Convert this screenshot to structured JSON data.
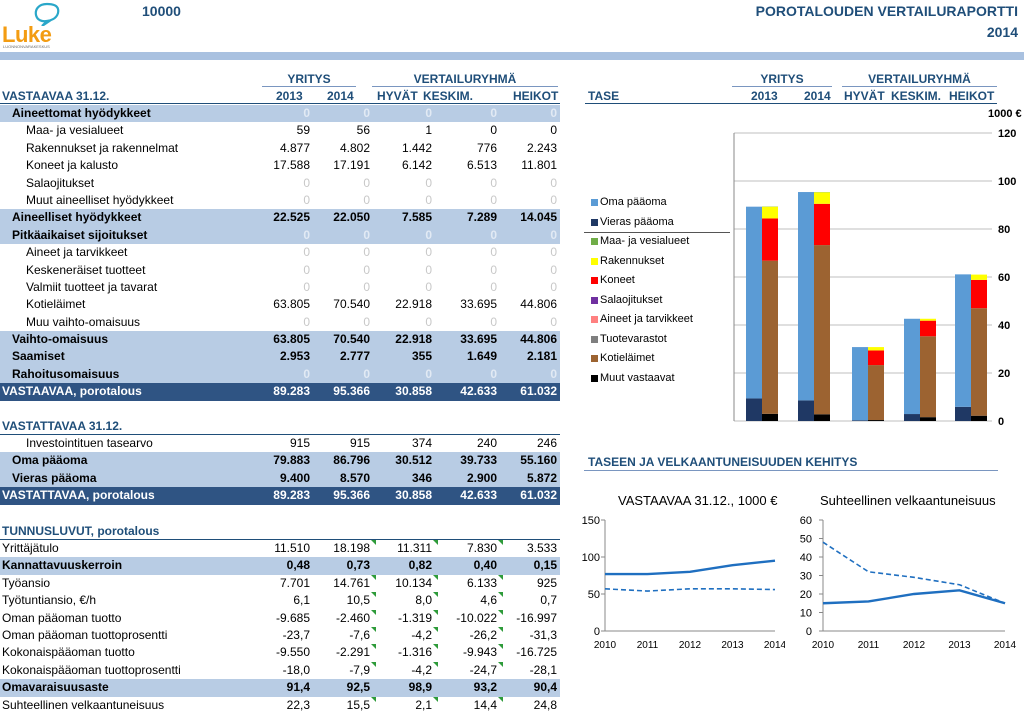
{
  "header": {
    "farm_id": "10000",
    "title": "POROTALOUDEN VERTAILURAPORTTI",
    "year": "2014",
    "logo_text": "Luke",
    "logo_sub": "LUONNONVARAKESKUS"
  },
  "groups": {
    "company": "YRITYS",
    "comparison": "VERTAILURYHMÄ"
  },
  "columns": [
    "2013",
    "2014",
    "HYVÄT",
    "KESKIM.",
    "HEIKOT"
  ],
  "assets": {
    "title": "VASTAAVAA 31.12.",
    "rows": [
      {
        "label": "Aineettomat hyödykkeet",
        "values": [
          "0",
          "0",
          "0",
          "0",
          "0"
        ],
        "style": "sum zero",
        "indent": 1
      },
      {
        "label": "Maa- ja vesialueet",
        "values": [
          "59",
          "56",
          "1",
          "0",
          "0"
        ],
        "style": "",
        "indent": 2
      },
      {
        "label": "Rakennukset ja rakennelmat",
        "values": [
          "4.877",
          "4.802",
          "1.442",
          "776",
          "2.243"
        ],
        "style": "",
        "indent": 2
      },
      {
        "label": "Koneet ja kalusto",
        "values": [
          "17.588",
          "17.191",
          "6.142",
          "6.513",
          "11.801"
        ],
        "style": "",
        "indent": 2
      },
      {
        "label": "Salaojitukset",
        "values": [
          "0",
          "0",
          "0",
          "0",
          "0"
        ],
        "style": "zero",
        "indent": 2
      },
      {
        "label": "Muut aineelliset hyödykkeet",
        "values": [
          "0",
          "0",
          "0",
          "0",
          "0"
        ],
        "style": "zero",
        "indent": 2
      },
      {
        "label": "Aineelliset hyödykkeet",
        "values": [
          "22.525",
          "22.050",
          "7.585",
          "7.289",
          "14.045"
        ],
        "style": "sum",
        "indent": 1
      },
      {
        "label": "Pitkäaikaiset sijoitukset",
        "values": [
          "0",
          "0",
          "0",
          "0",
          "0"
        ],
        "style": "sum zero",
        "indent": 1
      },
      {
        "label": "Aineet ja tarvikkeet",
        "values": [
          "0",
          "0",
          "0",
          "0",
          "0"
        ],
        "style": "zero",
        "indent": 2
      },
      {
        "label": "Keskeneräiset tuotteet",
        "values": [
          "0",
          "0",
          "0",
          "0",
          "0"
        ],
        "style": "zero",
        "indent": 2
      },
      {
        "label": "Valmiit tuotteet ja tavarat",
        "values": [
          "0",
          "0",
          "0",
          "0",
          "0"
        ],
        "style": "zero",
        "indent": 2
      },
      {
        "label": "Kotieläimet",
        "values": [
          "63.805",
          "70.540",
          "22.918",
          "33.695",
          "44.806"
        ],
        "style": "",
        "indent": 2
      },
      {
        "label": "Muu vaihto-omaisuus",
        "values": [
          "0",
          "0",
          "0",
          "0",
          "0"
        ],
        "style": "zero",
        "indent": 2
      },
      {
        "label": "Vaihto-omaisuus",
        "values": [
          "63.805",
          "70.540",
          "22.918",
          "33.695",
          "44.806"
        ],
        "style": "sum",
        "indent": 1
      },
      {
        "label": "Saamiset",
        "values": [
          "2.953",
          "2.777",
          "355",
          "1.649",
          "2.181"
        ],
        "style": "sum",
        "indent": 1
      },
      {
        "label": "Rahoitusomaisuus",
        "values": [
          "0",
          "0",
          "0",
          "0",
          "0"
        ],
        "style": "sum zero",
        "indent": 1
      },
      {
        "label": "VASTAAVAA, porotalous",
        "values": [
          "89.283",
          "95.366",
          "30.858",
          "42.633",
          "61.032"
        ],
        "style": "tot",
        "indent": 0
      }
    ]
  },
  "liabilities": {
    "title": "VASTATTAVAA 31.12.",
    "rows": [
      {
        "label": "Investointituen tasearvo",
        "values": [
          "915",
          "915",
          "374",
          "240",
          "246"
        ],
        "style": "",
        "indent": 2
      },
      {
        "label": "Oma pääoma",
        "values": [
          "79.883",
          "86.796",
          "30.512",
          "39.733",
          "55.160"
        ],
        "style": "sum",
        "indent": 1
      },
      {
        "label": "Vieras pääoma",
        "values": [
          "9.400",
          "8.570",
          "346",
          "2.900",
          "5.872"
        ],
        "style": "sum",
        "indent": 1
      },
      {
        "label": "VASTATTAVAA, porotalous",
        "values": [
          "89.283",
          "95.366",
          "30.858",
          "42.633",
          "61.032"
        ],
        "style": "tot",
        "indent": 0
      }
    ]
  },
  "ratios": {
    "title": "TUNNUSLUVUT, porotalous",
    "rows": [
      {
        "label": "Yrittäjätulo",
        "values": [
          "11.510",
          "18.198",
          "11.311",
          "7.830",
          "3.533"
        ],
        "style": "",
        "indent": 0
      },
      {
        "label": "Kannattavuuskerroin",
        "values": [
          "0,48",
          "0,73",
          "0,82",
          "0,40",
          "0,15"
        ],
        "style": "sum",
        "indent": 0
      },
      {
        "label": "Työansio",
        "values": [
          "7.701",
          "14.761",
          "10.134",
          "6.133",
          "925"
        ],
        "style": "",
        "indent": 0
      },
      {
        "label": "Työtuntiansio, €/h",
        "values": [
          "6,1",
          "10,5",
          "8,0",
          "4,6",
          "0,7"
        ],
        "style": "",
        "indent": 0
      },
      {
        "label": "Oman pääoman tuotto",
        "values": [
          "-9.685",
          "-2.460",
          "-1.319",
          "-10.022",
          "-16.997"
        ],
        "style": "",
        "indent": 0
      },
      {
        "label": "Oman pääoman tuottoprosentti",
        "values": [
          "-23,7",
          "-7,6",
          "-4,2",
          "-26,2",
          "-31,3"
        ],
        "style": "",
        "indent": 0
      },
      {
        "label": "Kokonaispääoman tuotto",
        "values": [
          "-9.550",
          "-2.291",
          "-1.316",
          "-9.943",
          "-16.725"
        ],
        "style": "",
        "indent": 0
      },
      {
        "label": "Kokonaispääoman tuottoprosentti",
        "values": [
          "-18,0",
          "-7,9",
          "-4,2",
          "-24,7",
          "-28,1"
        ],
        "style": "",
        "indent": 0
      },
      {
        "label": "Omavaraisuusaste",
        "values": [
          "91,4",
          "92,5",
          "98,9",
          "93,2",
          "90,4"
        ],
        "style": "sum",
        "indent": 0
      },
      {
        "label": "Suhteellinen velkaantuneisuus",
        "values": [
          "22,3",
          "15,5",
          "2,1",
          "14,4",
          "24,8"
        ],
        "style": "",
        "indent": 0
      }
    ]
  },
  "tase": {
    "label": "TASE",
    "unit": "1000 €",
    "legend": [
      {
        "name": "Oma pääoma",
        "color": "#5b9bd5"
      },
      {
        "name": "Vieras pääoma",
        "color": "#1f3864"
      },
      {
        "name": "Maa- ja vesialueet",
        "color": "#70ad47"
      },
      {
        "name": "Rakennukset",
        "color": "#ffff00"
      },
      {
        "name": "Koneet",
        "color": "#ff0000"
      },
      {
        "name": "Salaojitukset",
        "color": "#7030a0"
      },
      {
        "name": "Aineet ja tarvikkeet",
        "color": "#ff8080"
      },
      {
        "name": "Tuotevarastot",
        "color": "#7f7f7f"
      },
      {
        "name": "Kotieläimet",
        "color": "#9c6331"
      },
      {
        "name": "Muut vastaavat",
        "color": "#000000"
      }
    ]
  },
  "development_title": "TASEEN JA VELKAANTUNEISUUDEN KEHITYS",
  "chart_data": [
    {
      "type": "bar",
      "title": "",
      "ylabel": "1000 €",
      "categories": [
        "2013",
        "2014",
        "HYVÄT",
        "KESKIM.",
        "HEIKOT"
      ],
      "ylim": [
        0,
        120
      ],
      "yticks": [
        0,
        20,
        40,
        60,
        80,
        100,
        120
      ],
      "series": [
        {
          "name": "Vieras pääoma",
          "stack": "liabilities",
          "values": [
            9.4,
            8.6,
            0.3,
            2.9,
            5.9
          ]
        },
        {
          "name": "Oma pääoma",
          "stack": "liabilities",
          "values": [
            79.9,
            86.8,
            30.5,
            39.7,
            55.2
          ]
        },
        {
          "name": "Muut vastaavat",
          "stack": "assets",
          "values": [
            3.0,
            2.8,
            0.4,
            1.6,
            2.2
          ]
        },
        {
          "name": "Kotieläimet",
          "stack": "assets",
          "values": [
            63.8,
            70.5,
            22.9,
            33.7,
            44.8
          ]
        },
        {
          "name": "Koneet",
          "stack": "assets",
          "values": [
            17.6,
            17.2,
            6.1,
            6.5,
            11.8
          ]
        },
        {
          "name": "Rakennukset",
          "stack": "assets",
          "values": [
            4.9,
            4.8,
            1.4,
            0.8,
            2.2
          ]
        },
        {
          "name": "Maa- ja vesialueet",
          "stack": "assets",
          "values": [
            0.1,
            0.1,
            0,
            0,
            0
          ]
        }
      ]
    },
    {
      "type": "line",
      "title": "VASTAAVAA 31.12., 1000 €",
      "x": [
        "2010",
        "2011",
        "2012",
        "2013",
        "2014"
      ],
      "ylim": [
        0,
        150
      ],
      "yticks": [
        0,
        50,
        100,
        150
      ],
      "series": [
        {
          "values": [
            77,
            77,
            80,
            89,
            95
          ],
          "style": "solid"
        },
        {
          "values": [
            57,
            54,
            57,
            57,
            56
          ],
          "style": "dashed"
        }
      ]
    },
    {
      "type": "line",
      "title": "Suhteellinen velkaantuneisuus",
      "x": [
        "2010",
        "2011",
        "2012",
        "2013",
        "2014"
      ],
      "ylim": [
        0,
        60
      ],
      "yticks": [
        0,
        10,
        20,
        30,
        40,
        50,
        60
      ],
      "series": [
        {
          "values": [
            15,
            16,
            20,
            22,
            15
          ],
          "style": "solid"
        },
        {
          "values": [
            48,
            32,
            29,
            25,
            15
          ],
          "style": "dashed"
        }
      ]
    }
  ]
}
